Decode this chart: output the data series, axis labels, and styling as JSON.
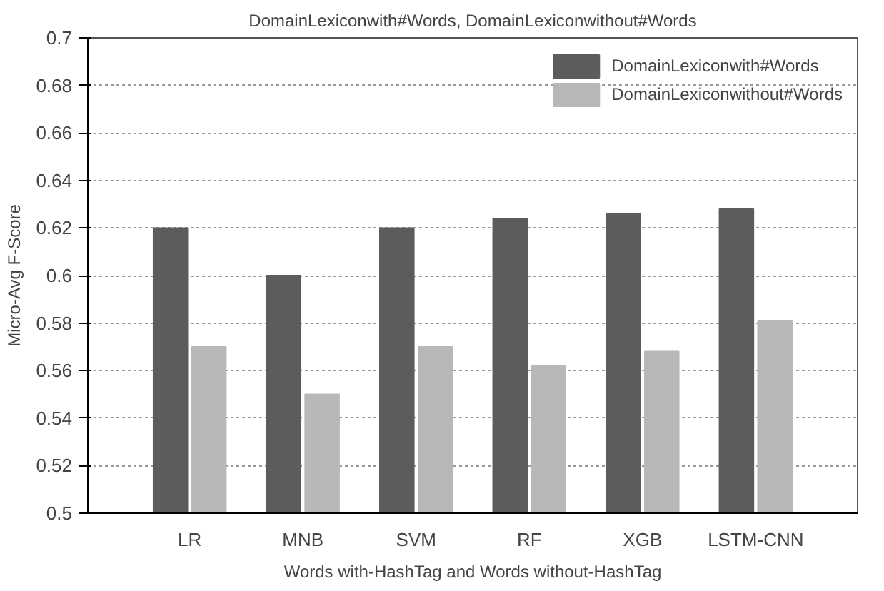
{
  "chart_data": {
    "type": "bar",
    "title": "DomainLexiconwith#Words, DomainLexiconwithout#Words",
    "xlabel": "Words with-HashTag and Words without-HashTag",
    "ylabel": "Micro-Avg F-Score",
    "categories": [
      "LR",
      "MNB",
      "SVM",
      "RF",
      "XGB",
      "LSTM-CNN"
    ],
    "series": [
      {
        "name": "DomainLexiconwith#Words",
        "color": "#5c5c5c",
        "values": [
          0.62,
          0.6,
          0.62,
          0.624,
          0.626,
          0.628
        ]
      },
      {
        "name": "DomainLexiconwithout#Words",
        "color": "#b8b8b8",
        "values": [
          0.57,
          0.55,
          0.57,
          0.562,
          0.568,
          0.581
        ]
      }
    ],
    "ylim": [
      0.5,
      0.7
    ],
    "yticks": [
      0.5,
      0.52,
      0.54,
      0.56,
      0.58,
      0.6,
      0.62,
      0.64,
      0.66,
      0.68,
      0.7
    ],
    "grid": "y",
    "legend": "top right"
  }
}
